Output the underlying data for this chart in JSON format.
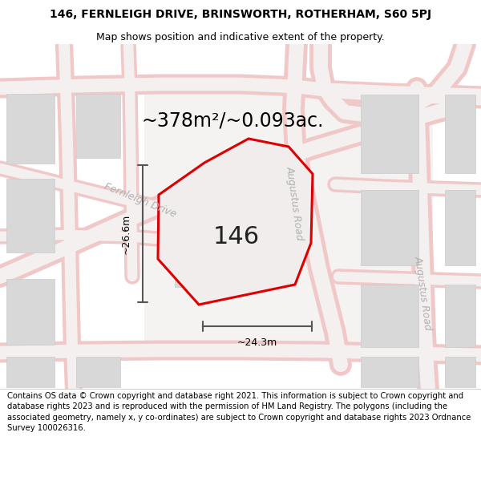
{
  "title_line1": "146, FERNLEIGH DRIVE, BRINSWORTH, ROTHERHAM, S60 5PJ",
  "title_line2": "Map shows position and indicative extent of the property.",
  "area_text": "~378m²/~0.093ac.",
  "number_label": "146",
  "dim_width": "~24.3m",
  "dim_height": "~26.6m",
  "road_label1": "Fernleigh Drive",
  "road_label2": "Augustus Road",
  "road_label3": "Augustus Road",
  "footer_text": "Contains OS data © Crown copyright and database right 2021. This information is subject to Crown copyright and database rights 2023 and is reproduced with the permission of HM Land Registry. The polygons (including the associated geometry, namely x, y co-ordinates) are subject to Crown copyright and database rights 2023 Ordnance Survey 100026316.",
  "bg_color": "#ededeb",
  "map_bg": "#ededeb",
  "road_color": "#f0c8c8",
  "road_center_color": "#f5f0f0",
  "block_fill": "#d8d8d8",
  "block_edge": "#cccccc",
  "white_area": "#f0eeee",
  "plot_outline_color": "#dd0000",
  "dim_color": "#555555",
  "title_fontsize": 10,
  "subtitle_fontsize": 9,
  "area_fontsize": 17,
  "number_fontsize": 22,
  "dim_fontsize": 9,
  "road_fontsize": 9,
  "footer_fontsize": 7.2
}
